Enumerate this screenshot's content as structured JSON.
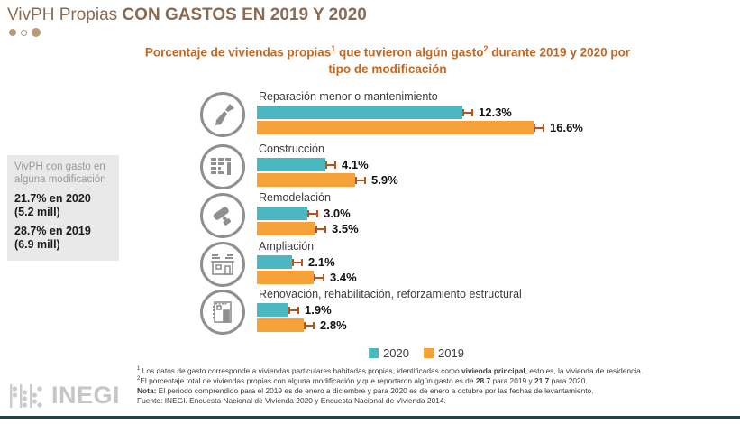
{
  "header": {
    "title_regular": "VivPH Propias ",
    "title_bold": "CON GASTOS EN 2019 Y 2020"
  },
  "subtitle": "Porcentaje de viviendas propias¹ que tuvieron algún gasto² durante 2019 y 2020 por tipo de modificación",
  "info_box": {
    "label": "VivPH con gasto en alguna modificación",
    "entries": [
      {
        "value_line": "21.7% en 2020",
        "count_line": "(5.2 mill)"
      },
      {
        "value_line": "28.7% en 2019",
        "count_line": "(6.9 mill)"
      }
    ]
  },
  "chart_data": {
    "type": "bar",
    "orientation": "horizontal",
    "title": "Porcentaje de viviendas propias que tuvieron algún gasto durante 2019 y 2020 por tipo de modificación",
    "categories": [
      "Reparación menor o mantenimiento",
      "Construcción",
      "Remodelación",
      "Ampliación",
      "Renovación, rehabilitación, reforzamiento estructural"
    ],
    "series": [
      {
        "name": "2020",
        "color": "#4BB8C1",
        "values": [
          12.3,
          4.1,
          3.0,
          2.1,
          1.9
        ]
      },
      {
        "name": "2019",
        "color": "#F7A238",
        "values": [
          16.6,
          5.9,
          3.5,
          3.4,
          2.8
        ]
      }
    ],
    "icons": [
      "trowel-icon",
      "brick-wall-icon",
      "paint-roller-icon",
      "house-extension-icon",
      "building-facade-icon"
    ],
    "error_bars": true,
    "error_bar_color": "#b4551d",
    "value_label_format": "{value}%",
    "xlim": [
      0,
      17.5
    ],
    "grid": false,
    "legend_position": "bottom-center"
  },
  "legend": [
    {
      "label": "2020",
      "color": "#4BB8C1"
    },
    {
      "label": "2019",
      "color": "#F7A238"
    }
  ],
  "footnotes": [
    [
      {
        "t": "¹ Los datos de gasto corresponde a viviendas particulares habitadas propias, identificadas como "
      },
      {
        "t": "vivienda principal",
        "b": true
      },
      {
        "t": ", esto es, la vivienda de residencia."
      }
    ],
    [
      {
        "t": "²El porcentaje total de viviendas propias con alguna modificación y que reportaron algún gasto es de "
      },
      {
        "t": "28.7",
        "b": true
      },
      {
        "t": " para 2019 y "
      },
      {
        "t": "21.7",
        "b": true
      },
      {
        "t": " para 2020."
      }
    ],
    [
      {
        "t": "Nota:",
        "b": true
      },
      {
        "t": " El periodo comprendido para el 2019 es de enero a diciembre y para 2020 es de enero a octubre por las fechas de levantamiento."
      }
    ],
    [
      {
        "t": "Fuente: INEGI. Encuesta Nacional de Vivienda 2020 y Encuesta Nacional de Vivienda 2014."
      }
    ]
  ],
  "logo": {
    "text": "INEGI"
  },
  "colors": {
    "title": "#8a6a52",
    "subtitle": "#c3661f",
    "bar_2020": "#4BB8C1",
    "bar_2019": "#F7A238",
    "whisker": "#b4551d",
    "bottom_rule": "#17444d",
    "info_box_bg": "#e9e9e9"
  }
}
